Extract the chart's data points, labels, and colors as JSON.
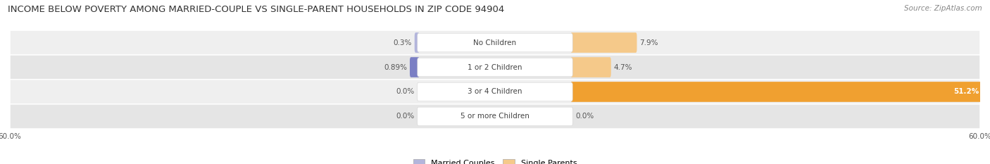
{
  "title": "INCOME BELOW POVERTY AMONG MARRIED-COUPLE VS SINGLE-PARENT HOUSEHOLDS IN ZIP CODE 94904",
  "source": "Source: ZipAtlas.com",
  "categories": [
    "No Children",
    "1 or 2 Children",
    "3 or 4 Children",
    "5 or more Children"
  ],
  "married_values": [
    0.3,
    0.89,
    0.0,
    0.0
  ],
  "single_values": [
    7.9,
    4.7,
    51.2,
    0.0
  ],
  "xlim": 60.0,
  "married_color_dark": "#7b7fc4",
  "married_color_light": "#b3b5dc",
  "single_color_dark": "#f0a030",
  "single_color_light": "#f5c98a",
  "row_bg_even": "#efefef",
  "row_bg_odd": "#e5e5e5",
  "title_fontsize": 9.5,
  "label_fontsize": 7.5,
  "value_fontsize": 7.5,
  "legend_fontsize": 8.0,
  "source_fontsize": 7.5
}
